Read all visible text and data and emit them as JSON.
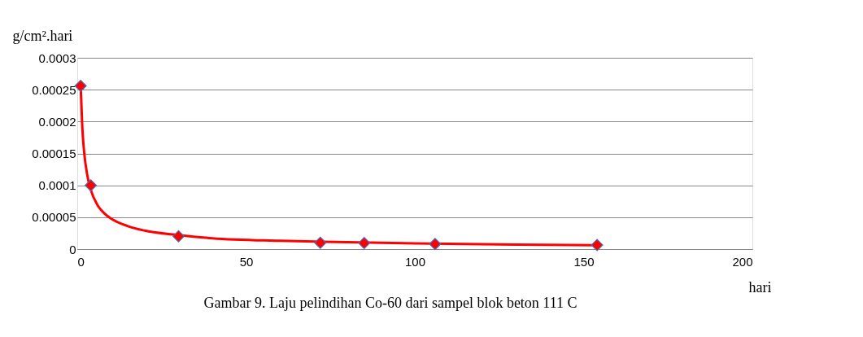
{
  "chart_data": {
    "type": "scatter",
    "xlabel": "hari",
    "ylabel": "g/cm².hari",
    "annotations": [
      "Gambar 9. Laju pelindihan Co-60 dari sampel blok beton 111 C"
    ],
    "xlim": [
      0,
      200
    ],
    "xticks": [
      0,
      50,
      100,
      150,
      200
    ],
    "ylim": [
      0,
      0.0003
    ],
    "yticks": [
      0,
      {
        "value": 5e-05,
        "label": "0.00005"
      },
      {
        "value": 0.0001,
        "label": "0.0001"
      },
      {
        "value": 0.00015,
        "label": "0.00015"
      },
      {
        "value": 0.0002,
        "label": "0.0002"
      },
      {
        "value": 0.00025,
        "label": "0.00025"
      },
      {
        "value": 0.0003,
        "label": "0.0003"
      }
    ],
    "grid": "y",
    "marker": "diamond",
    "series": [
      {
        "type": "line",
        "color": "#ff0000",
        "line_style": "solid",
        "marker": "none",
        "x": [
          1,
          1.5,
          2,
          3,
          4,
          6,
          8,
          10,
          15,
          20,
          30,
          40,
          60,
          80,
          100,
          130,
          154
        ],
        "values": [
          0.000256,
          0.00019,
          0.000154,
          0.000115,
          9.3e-05,
          6.9e-05,
          5.6e-05,
          4.8e-05,
          3.6e-05,
          2.9e-05,
          2.2e-05,
          1.7e-05,
          1.3e-05,
          1.1e-05,
          9e-06,
          7e-06,
          6e-06
        ]
      },
      {
        "color": "#ff0000",
        "x": [
          1,
          4,
          30,
          72,
          85,
          106,
          154
        ],
        "values": [
          0.000256,
          0.0001,
          2e-05,
          1e-05,
          9.5e-06,
          8e-06,
          6.5e-06
        ]
      }
    ]
  }
}
